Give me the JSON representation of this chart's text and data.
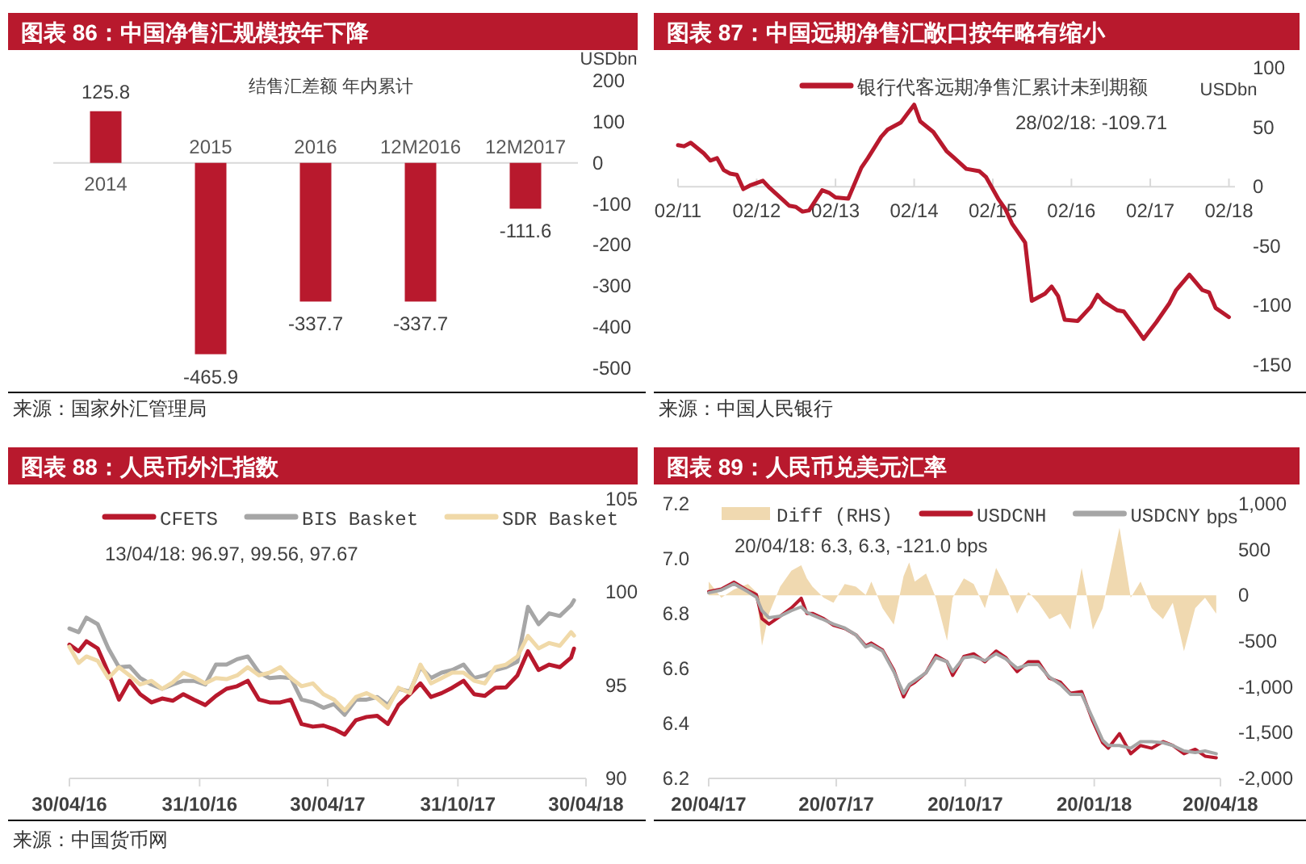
{
  "chart_data": [
    {
      "type": "bar",
      "title": "图表 86：中国净售汇规模按年下降",
      "subtitle": "结售汇差额 年内累计",
      "ylabel": "USDbn",
      "categories": [
        "2014",
        "2015",
        "2016",
        "12M2016",
        "12M2017"
      ],
      "values": [
        125.8,
        -465.9,
        -337.7,
        -337.7,
        -111.6
      ],
      "color": "#b8192d",
      "ylim": [
        -500,
        200
      ],
      "yticks": [
        -500,
        -400,
        -300,
        -200,
        -100,
        0,
        100,
        200
      ],
      "data_labels": true,
      "annotations": [
        "来源：国家外汇管理局"
      ]
    },
    {
      "type": "line",
      "title": "图表 87：中国远期净售汇敞口按年略有缩小",
      "ylabel": "USDbn",
      "x": [
        "2011-02",
        "2011-03",
        "2011-04",
        "2011-06",
        "2011-07",
        "2011-08",
        "2011-09",
        "2011-10",
        "2011-11",
        "2011-12",
        "2012-01",
        "2012-03",
        "2012-04",
        "2012-06",
        "2012-07",
        "2012-08",
        "2012-09",
        "2012-10",
        "2012-12",
        "2013-01",
        "2013-02",
        "2013-04",
        "2013-06",
        "2013-07",
        "2013-09",
        "2013-10",
        "2013-12",
        "2014-02",
        "2014-03",
        "2014-05",
        "2014-07",
        "2014-08",
        "2014-09",
        "2014-10",
        "2014-12",
        "2015-01",
        "2015-03",
        "2015-04",
        "2015-05",
        "2015-07",
        "2015-08",
        "2015-10",
        "2015-11",
        "2015-12",
        "2016-01",
        "2016-03",
        "2016-05",
        "2016-06",
        "2016-07",
        "2016-09",
        "2016-10",
        "2016-12",
        "2017-01",
        "2017-03",
        "2017-05",
        "2017-06",
        "2017-08",
        "2017-10",
        "2017-11",
        "2017-12",
        "2018-02"
      ],
      "series": [
        {
          "name": "银行代客远期净售汇累计未到期额",
          "color": "#b8192d",
          "values": [
            35,
            34,
            37,
            28,
            22,
            24,
            14,
            11,
            10,
            -2,
            1,
            5,
            -1,
            -11,
            -16,
            -17,
            -21,
            -20,
            -3,
            -5,
            -9,
            -10,
            16,
            24,
            42,
            48,
            54,
            69,
            55,
            46,
            30,
            25,
            20,
            15,
            13,
            8,
            -11,
            -19,
            -31,
            -47,
            -96,
            -90,
            -84,
            -92,
            -112,
            -113,
            -101,
            -91,
            -97,
            -104,
            -105,
            -120,
            -128,
            -114,
            -98,
            -87,
            -74,
            -87,
            -89,
            -102,
            -109.71
          ]
        }
      ],
      "xlim": [
        "2011-02",
        "2018-03"
      ],
      "xticks": [
        {
          "value": "2011-02",
          "label": "02/11"
        },
        {
          "value": "2012-02",
          "label": "02/12"
        },
        {
          "value": "2013-02",
          "label": "02/13"
        },
        {
          "value": "2014-02",
          "label": "02/14"
        },
        {
          "value": "2015-02",
          "label": "02/15"
        },
        {
          "value": "2016-02",
          "label": "02/16"
        },
        {
          "value": "2017-02",
          "label": "02/17"
        },
        {
          "value": "2018-02",
          "label": "02/18"
        }
      ],
      "ylim": [
        -150,
        100
      ],
      "yticks": [
        -150,
        -100,
        -50,
        0,
        50,
        100
      ],
      "legend": "top",
      "annotations": [
        "28/02/18:  -109.71",
        "来源：中国人民银行"
      ]
    },
    {
      "type": "line",
      "title": "图表 88：人民币外汇指数",
      "x": [
        "2016-04-30",
        "2016-05-13",
        "2016-05-24",
        "2016-06-09",
        "2016-06-24",
        "2016-07-09",
        "2016-07-24",
        "2016-08-08",
        "2016-08-24",
        "2016-09-08",
        "2016-09-23",
        "2016-10-08",
        "2016-10-23",
        "2016-11-08",
        "2016-11-23",
        "2016-12-08",
        "2016-12-23",
        "2017-01-07",
        "2017-01-23",
        "2017-02-07",
        "2017-02-22",
        "2017-03-09",
        "2017-03-24",
        "2017-04-09",
        "2017-04-24",
        "2017-05-09",
        "2017-05-24",
        "2017-06-09",
        "2017-06-24",
        "2017-07-09",
        "2017-07-24",
        "2017-08-08",
        "2017-08-24",
        "2017-09-08",
        "2017-09-23",
        "2017-10-08",
        "2017-10-23",
        "2017-11-08",
        "2017-11-23",
        "2017-12-08",
        "2017-12-23",
        "2018-01-07",
        "2018-01-23",
        "2018-02-07",
        "2018-02-22",
        "2018-03-09",
        "2018-03-24",
        "2018-04-09",
        "2018-04-13"
      ],
      "series": [
        {
          "name": "CFETS",
          "color": "#b8192d",
          "values": [
            97.18,
            96.83,
            97.36,
            96.98,
            95.68,
            94.23,
            95.24,
            94.52,
            94.08,
            94.29,
            94.17,
            94.52,
            94.23,
            93.94,
            94.43,
            94.81,
            94.95,
            95.24,
            94.23,
            94.08,
            94.08,
            94.23,
            92.92,
            92.78,
            92.84,
            92.64,
            92.35,
            93.13,
            93.3,
            93.36,
            92.92,
            93.94,
            94.52,
            95.1,
            94.37,
            94.58,
            94.87,
            95.24,
            94.52,
            94.43,
            94.87,
            94.89,
            95.53,
            96.83,
            95.82,
            96.11,
            95.97,
            96.49,
            96.97
          ]
        },
        {
          "name": "BIS Basket",
          "color": "#a6a6a6",
          "values": [
            98.05,
            97.85,
            98.63,
            98.28,
            96.98,
            95.97,
            96.02,
            95.39,
            95.04,
            94.81,
            95.04,
            95.24,
            95.24,
            95.04,
            96.11,
            96.11,
            96.4,
            96.55,
            95.68,
            95.39,
            95.44,
            95.39,
            94.23,
            94.08,
            93.79,
            93.99,
            93.42,
            94.23,
            94.23,
            94.37,
            93.94,
            94.81,
            94.66,
            95.97,
            95.39,
            95.68,
            95.82,
            96.11,
            95.39,
            95.53,
            95.82,
            95.97,
            96.26,
            99.21,
            98.28,
            98.86,
            98.72,
            99.3,
            99.56
          ]
        },
        {
          "name": "SDR Basket",
          "color": "#f0d9a8",
          "values": [
            97.07,
            96.2,
            96.55,
            96.31,
            95.39,
            95.97,
            95.53,
            95.04,
            95.24,
            94.81,
            95.15,
            95.68,
            95.44,
            95.1,
            95.39,
            95.33,
            95.53,
            95.97,
            95.53,
            95.68,
            95.97,
            95.39,
            94.95,
            95.1,
            94.52,
            94.23,
            93.65,
            94.37,
            94.58,
            94.29,
            93.79,
            94.87,
            94.58,
            96.11,
            95.1,
            95.39,
            95.68,
            95.68,
            95.24,
            95.1,
            95.97,
            96.11,
            96.55,
            97.65,
            96.98,
            97.27,
            97.12,
            97.85,
            97.67
          ]
        }
      ],
      "xlim": [
        "2016-04-30",
        "2018-04-30"
      ],
      "xticks": [
        {
          "value": "2016-04-30",
          "label": "30/04/16"
        },
        {
          "value": "2016-10-31",
          "label": "31/10/16"
        },
        {
          "value": "2017-04-30",
          "label": "30/04/17"
        },
        {
          "value": "2017-10-31",
          "label": "31/10/17"
        },
        {
          "value": "2018-04-30",
          "label": "30/04/18"
        }
      ],
      "ylim": [
        90,
        105
      ],
      "yticks": [
        90,
        95,
        100,
        105
      ],
      "legend": "top",
      "annotations": [
        "13/04/18: 96.97, 99.56, 97.67",
        "来源：中国货币网"
      ]
    },
    {
      "type": "line",
      "title": "图表 89：人民币兑美元汇率",
      "y2label": "bps",
      "x": [
        "2017-04-20",
        "2017-04-29",
        "2017-05-08",
        "2017-05-18",
        "2017-05-24",
        "2017-05-28",
        "2017-06-02",
        "2017-06-10",
        "2017-06-18",
        "2017-06-25",
        "2017-06-29",
        "2017-07-03",
        "2017-07-11",
        "2017-07-18",
        "2017-07-26",
        "2017-08-03",
        "2017-08-10",
        "2017-08-14",
        "2017-08-22",
        "2017-08-30",
        "2017-09-06",
        "2017-09-10",
        "2017-09-14",
        "2017-09-22",
        "2017-09-29",
        "2017-10-07",
        "2017-10-11",
        "2017-10-19",
        "2017-10-26",
        "2017-11-03",
        "2017-11-11",
        "2017-11-18",
        "2017-11-26",
        "2017-12-04",
        "2017-12-11",
        "2017-12-19",
        "2017-12-27",
        "2018-01-03",
        "2018-01-11",
        "2018-01-19",
        "2018-01-26",
        "2018-01-30",
        "2018-02-07",
        "2018-02-15",
        "2018-02-22",
        "2018-03-02",
        "2018-03-10",
        "2018-03-17",
        "2018-03-25",
        "2018-04-02",
        "2018-04-09",
        "2018-04-17"
      ],
      "series": [
        {
          "name": "Diff (RHS)",
          "type": "area",
          "axis": "y2",
          "color": "#f0d9b0",
          "values": [
            150,
            -25,
            65,
            125,
            35,
            -550,
            -200,
            95,
            270,
            330,
            185,
            95,
            -25,
            -80,
            125,
            95,
            5,
            150,
            -140,
            -320,
            210,
            360,
            150,
            240,
            -25,
            -495,
            -25,
            185,
            125,
            -140,
            300,
            95,
            -200,
            35,
            -80,
            -260,
            -200,
            -375,
            300,
            -375,
            -140,
            150,
            740,
            -25,
            150,
            -140,
            -260,
            -80,
            -610,
            -140,
            -25,
            -200
          ]
        },
        {
          "name": "USDCNH",
          "color": "#b8192d",
          "values": [
            6.88,
            6.89,
            6.915,
            6.884,
            6.87,
            6.782,
            6.762,
            6.791,
            6.821,
            6.856,
            6.801,
            6.801,
            6.782,
            6.758,
            6.746,
            6.723,
            6.683,
            6.693,
            6.668,
            6.595,
            6.497,
            6.537,
            6.55,
            6.585,
            6.648,
            6.625,
            6.575,
            6.644,
            6.654,
            6.625,
            6.664,
            6.64,
            6.589,
            6.625,
            6.625,
            6.565,
            6.55,
            6.51,
            6.516,
            6.408,
            6.33,
            6.31,
            6.363,
            6.29,
            6.32,
            6.31,
            6.334,
            6.32,
            6.29,
            6.306,
            6.281,
            6.275
          ]
        },
        {
          "name": "USDCNY",
          "color": "#a6a6a6",
          "values": [
            6.876,
            6.886,
            6.909,
            6.88,
            6.86,
            6.811,
            6.785,
            6.791,
            6.811,
            6.825,
            6.805,
            6.795,
            6.778,
            6.762,
            6.748,
            6.723,
            6.679,
            6.687,
            6.664,
            6.589,
            6.51,
            6.542,
            6.556,
            6.585,
            6.64,
            6.625,
            6.589,
            6.64,
            6.644,
            6.629,
            6.654,
            6.635,
            6.601,
            6.615,
            6.615,
            6.569,
            6.542,
            6.506,
            6.506,
            6.418,
            6.339,
            6.32,
            6.32,
            6.31,
            6.334,
            6.334,
            6.33,
            6.32,
            6.3,
            6.294,
            6.3,
            6.29
          ]
        }
      ],
      "xlim": [
        "2017-04-20",
        "2018-04-20"
      ],
      "xticks": [
        {
          "value": "2017-04-20",
          "label": "20/04/17"
        },
        {
          "value": "2017-07-20",
          "label": "20/07/17"
        },
        {
          "value": "2017-10-20",
          "label": "20/10/17"
        },
        {
          "value": "2018-01-20",
          "label": "20/01/18"
        },
        {
          "value": "2018-04-20",
          "label": "20/04/18"
        }
      ],
      "ylim": [
        6.2,
        7.2
      ],
      "yticks": [
        6.2,
        6.4,
        6.6,
        6.8,
        {
          "value": 7,
          "label": "7.0"
        },
        7.2
      ],
      "y2lim": [
        -2000,
        1000
      ],
      "y2ticks": [
        {
          "value": -2000,
          "label": "-2,000"
        },
        {
          "value": -1500,
          "label": "-1,500"
        },
        {
          "value": -1000,
          "label": "-1,000"
        },
        -500,
        0,
        500,
        {
          "value": 1000,
          "label": "1,000"
        }
      ],
      "legend": "top",
      "annotations": [
        "20/04/18: 6.3, 6.3, -121.0 bps"
      ]
    }
  ]
}
